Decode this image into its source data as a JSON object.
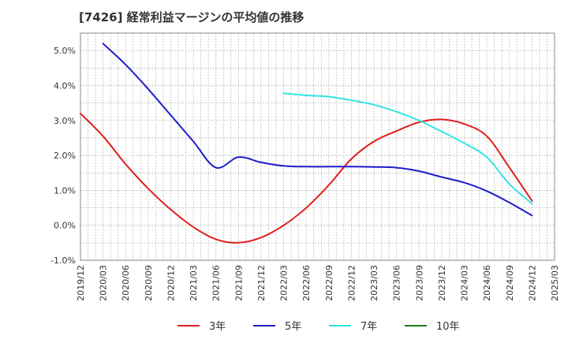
{
  "chart_data": {
    "type": "line",
    "title": "[7426]  経常利益マージンの平均値の推移",
    "xlabel": "",
    "ylabel": "",
    "ylim": [
      -0.01,
      0.055
    ],
    "yticks": [
      {
        "value": 0.05,
        "label": "5.0%"
      },
      {
        "value": 0.04,
        "label": "4.0%"
      },
      {
        "value": 0.03,
        "label": "3.0%"
      },
      {
        "value": 0.02,
        "label": "2.0%"
      },
      {
        "value": 0.01,
        "label": "1.0%"
      },
      {
        "value": 0.0,
        "label": "0.0%"
      },
      {
        "value": -0.01,
        "label": "-1.0%"
      }
    ],
    "x_categories": [
      "2019/12",
      "2020/03",
      "2020/06",
      "2020/09",
      "2020/12",
      "2021/03",
      "2021/06",
      "2021/09",
      "2021/12",
      "2022/03",
      "2022/06",
      "2022/09",
      "2022/12",
      "2023/03",
      "2023/06",
      "2023/09",
      "2023/12",
      "2024/03",
      "2024/06",
      "2024/09",
      "2024/12",
      "2025/03"
    ],
    "grid": true,
    "legend_position": "bottom",
    "series": [
      {
        "name": "3年",
        "color": "#e0201b",
        "values": [
          0.032,
          0.0255,
          0.0175,
          0.0105,
          0.0045,
          -0.0005,
          -0.004,
          -0.005,
          -0.0035,
          0.0,
          0.005,
          0.0115,
          0.019,
          0.024,
          0.027,
          0.0295,
          0.0303,
          0.029,
          0.0255,
          0.0165,
          0.007,
          null
        ]
      },
      {
        "name": "5年",
        "color": "#1c1ccc",
        "values": [
          null,
          0.052,
          0.046,
          0.039,
          0.0315,
          0.024,
          0.0165,
          0.0195,
          0.018,
          0.017,
          0.0168,
          0.0168,
          0.0168,
          0.0167,
          0.0165,
          0.0155,
          0.0138,
          0.0122,
          0.0098,
          0.0065,
          0.0028,
          null
        ]
      },
      {
        "name": "7年",
        "color": "#33e5e5",
        "values": [
          null,
          null,
          null,
          null,
          null,
          null,
          null,
          null,
          null,
          0.0378,
          0.0372,
          0.0368,
          0.0358,
          0.0345,
          0.0325,
          0.03,
          0.0268,
          0.0235,
          0.0195,
          0.0118,
          0.0062,
          null
        ]
      },
      {
        "name": "10年",
        "color": "#1f7a1f",
        "values": []
      }
    ]
  }
}
